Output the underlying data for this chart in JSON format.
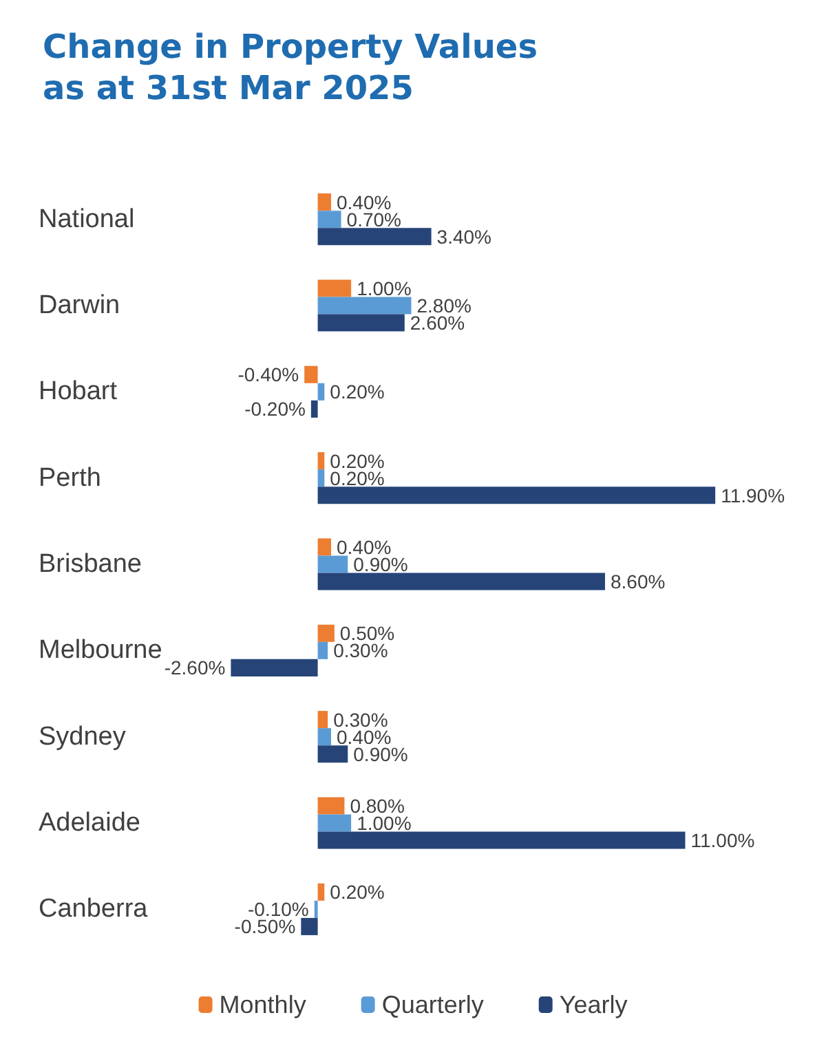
{
  "chart_data": {
    "type": "bar",
    "orientation": "horizontal",
    "title": "Change in Property Values\nas at 31st Mar 2025",
    "categories": [
      "National",
      "Darwin",
      "Hobart",
      "Perth",
      "Brisbane",
      "Melbourne",
      "Sydney",
      "Adelaide",
      "Canberra"
    ],
    "series": [
      {
        "name": "Monthly",
        "color": "#ed7d31",
        "values": [
          0.4,
          1.0,
          -0.4,
          0.2,
          0.4,
          0.5,
          0.3,
          0.8,
          0.2
        ],
        "value_labels": [
          "0.40%",
          "1.00%",
          "-0.40%",
          "0.20%",
          "0.40%",
          "0.50%",
          "0.30%",
          "0.80%",
          "0.20%"
        ]
      },
      {
        "name": "Quarterly",
        "color": "#5b9bd5",
        "values": [
          0.7,
          2.8,
          0.2,
          0.2,
          0.9,
          0.3,
          0.4,
          1.0,
          -0.1
        ],
        "value_labels": [
          "0.70%",
          "2.80%",
          "0.20%",
          "0.20%",
          "0.90%",
          "0.30%",
          "0.40%",
          "1.00%",
          "-0.10%"
        ]
      },
      {
        "name": "Yearly",
        "color": "#264478",
        "values": [
          3.4,
          2.6,
          -0.2,
          11.9,
          8.6,
          -2.6,
          0.9,
          11.0,
          -0.5
        ],
        "value_labels": [
          "3.40%",
          "2.60%",
          "-0.20%",
          "11.90%",
          "8.60%",
          "-2.60%",
          "0.90%",
          "11.00%",
          "-0.50%"
        ]
      }
    ],
    "legend": "bottom"
  }
}
